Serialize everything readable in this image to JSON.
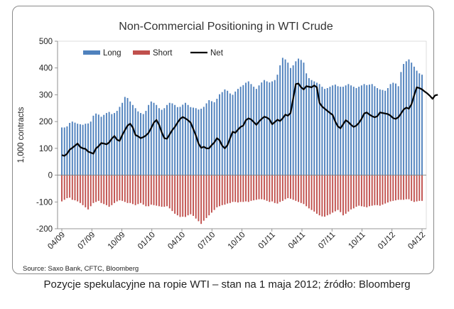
{
  "caption": "Pozycje spekulacyjne na ropie WTI – stan na 1 maja 2012; źródło: Bloomberg",
  "chart_data": {
    "type": "bar",
    "title": "Non-Commercial Positioning in WTI Crude",
    "ylabel": "1,000 contracts",
    "xlabel": "",
    "source": "Source: Saxo Bank, CFTC, Bloomberg",
    "ylim": [
      -200,
      500
    ],
    "yticks": [
      500,
      400,
      300,
      200,
      100,
      0,
      -100,
      -200
    ],
    "xticks": [
      "04/09",
      "07/09",
      "10/09",
      "01/10",
      "04/10",
      "07/10",
      "10/10",
      "01/11",
      "04/11",
      "07/11",
      "10/11",
      "01/12",
      "04/12"
    ],
    "legend": {
      "position": "top-left",
      "entries": [
        "Long",
        "Short",
        "Net"
      ]
    },
    "grid": false,
    "colors": {
      "long": "#4f81bd",
      "short": "#c0504d",
      "net": "#000000",
      "zero_line": "#7f7f7f"
    },
    "series": [
      {
        "name": "Long",
        "type": "bar",
        "values": [
          178,
          178,
          182,
          195,
          200,
          196,
          192,
          190,
          188,
          192,
          193,
          200,
          222,
          230,
          226,
          218,
          225,
          232,
          236,
          228,
          232,
          240,
          255,
          270,
          292,
          288,
          275,
          262,
          250,
          238,
          232,
          228,
          240,
          262,
          275,
          270,
          262,
          250,
          244,
          250,
          262,
          270,
          268,
          262,
          254,
          255,
          263,
          270,
          262,
          254,
          252,
          250,
          245,
          248,
          255,
          268,
          280,
          276,
          272,
          285,
          302,
          310,
          320,
          315,
          305,
          300,
          312,
          322,
          330,
          336,
          345,
          350,
          340,
          330,
          322,
          335,
          346,
          355,
          350,
          346,
          350,
          355,
          375,
          410,
          438,
          432,
          420,
          400,
          410,
          425,
          435,
          430,
          420,
          380,
          362,
          355,
          350,
          345,
          340,
          330,
          322,
          325,
          330,
          335,
          338,
          332,
          330,
          330,
          335,
          340,
          335,
          330,
          325,
          330,
          335,
          340,
          336,
          338,
          340,
          332,
          325,
          320,
          318,
          315,
          325,
          340,
          345,
          342,
          332,
          385,
          415,
          425,
          432,
          420,
          405,
          390,
          380,
          375
        ]
      },
      {
        "name": "Short",
        "type": "bar",
        "values": [
          -98,
          -92,
          -86,
          -84,
          -92,
          -94,
          -98,
          -104,
          -112,
          -120,
          -128,
          -116,
          -104,
          -100,
          -96,
          -104,
          -108,
          -112,
          -118,
          -112,
          -104,
          -98,
          -94,
          -96,
          -100,
          -104,
          -104,
          -108,
          -112,
          -108,
          -104,
          -110,
          -116,
          -116,
          -110,
          -112,
          -114,
          -116,
          -118,
          -118,
          -116,
          -124,
          -134,
          -144,
          -150,
          -156,
          -155,
          -156,
          -150,
          -146,
          -152,
          -162,
          -172,
          -182,
          -170,
          -160,
          -150,
          -140,
          -130,
          -120,
          -116,
          -112,
          -110,
          -106,
          -104,
          -100,
          -100,
          -102,
          -100,
          -100,
          -98,
          -100,
          -96,
          -94,
          -92,
          -90,
          -90,
          -92,
          -96,
          -100,
          -98,
          -104,
          -106,
          -100,
          -96,
          -90,
          -86,
          -88,
          -92,
          -96,
          -100,
          -104,
          -108,
          -116,
          -124,
          -130,
          -136,
          -144,
          -150,
          -154,
          -155,
          -150,
          -146,
          -140,
          -135,
          -130,
          -138,
          -150,
          -144,
          -136,
          -128,
          -124,
          -118,
          -114,
          -116,
          -118,
          -120,
          -116,
          -114,
          -112,
          -112,
          -114,
          -110,
          -106,
          -102,
          -98,
          -96,
          -94,
          -92,
          -92,
          -92,
          -90,
          -90,
          -96,
          -100,
          -98,
          -96,
          -96
        ]
      },
      {
        "name": "Net",
        "type": "line",
        "values": [
          75,
          72,
          80,
          95,
          102,
          110,
          118,
          105,
          100,
          98,
          88,
          84,
          80,
          100,
          108,
          120,
          118,
          115,
          122,
          136,
          146,
          132,
          128,
          150,
          168,
          185,
          192,
          178,
          150,
          145,
          138,
          142,
          148,
          158,
          176,
          196,
          206,
          188,
          160,
          138,
          136,
          152,
          168,
          180,
          196,
          210,
          217,
          212,
          205,
          196,
          172,
          148,
          118,
          102,
          106,
          100,
          100,
          112,
          122,
          138,
          130,
          110,
          100,
          112,
          138,
          162,
          158,
          170,
          180,
          185,
          205,
          212,
          208,
          198,
          188,
          200,
          210,
          218,
          215,
          208,
          190,
          198,
          207,
          202,
          212,
          226,
          222,
          232,
          286,
          340,
          342,
          328,
          320,
          332,
          330,
          328,
          335,
          328,
          270,
          256,
          248,
          240,
          232,
          225,
          200,
          182,
          175,
          190,
          205,
          198,
          188,
          180,
          185,
          195,
          210,
          230,
          234,
          226,
          220,
          216,
          220,
          234,
          232,
          230,
          228,
          222,
          213,
          210,
          216,
          230,
          245,
          252,
          248,
          265,
          298,
          328,
          325,
          320,
          312,
          305,
          296,
          285,
          298,
          300
        ]
      }
    ]
  }
}
